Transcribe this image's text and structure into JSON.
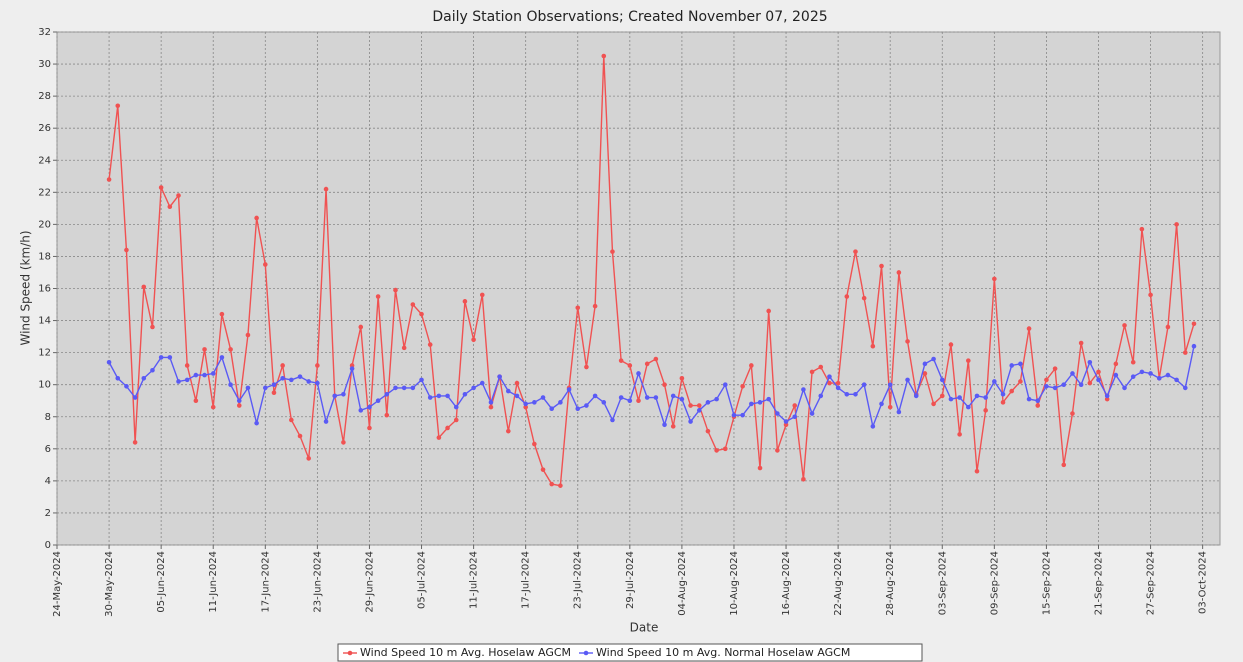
{
  "chart_data": {
    "type": "line",
    "title": "Daily Station Observations; Created November 07, 2025",
    "xlabel": "Date",
    "ylabel": "Wind Speed (km/h)",
    "grid": true,
    "legend": "bottom",
    "x": [
      "2024-05-30",
      "2024-05-31",
      "2024-06-01",
      "2024-06-02",
      "2024-06-03",
      "2024-06-04",
      "2024-06-05",
      "2024-06-06",
      "2024-06-07",
      "2024-06-08",
      "2024-06-09",
      "2024-06-10",
      "2024-06-11",
      "2024-06-12",
      "2024-06-13",
      "2024-06-14",
      "2024-06-15",
      "2024-06-16",
      "2024-06-17",
      "2024-06-18",
      "2024-06-19",
      "2024-06-20",
      "2024-06-21",
      "2024-06-22",
      "2024-06-23",
      "2024-06-24",
      "2024-06-25",
      "2024-06-26",
      "2024-06-27",
      "2024-06-28",
      "2024-06-29",
      "2024-06-30",
      "2024-07-01",
      "2024-07-02",
      "2024-07-03",
      "2024-07-04",
      "2024-07-05",
      "2024-07-06",
      "2024-07-07",
      "2024-07-08",
      "2024-07-09",
      "2024-07-10",
      "2024-07-11",
      "2024-07-12",
      "2024-07-13",
      "2024-07-14",
      "2024-07-15",
      "2024-07-16",
      "2024-07-17",
      "2024-07-18",
      "2024-07-19",
      "2024-07-20",
      "2024-07-21",
      "2024-07-22",
      "2024-07-23",
      "2024-07-24",
      "2024-07-25",
      "2024-07-26",
      "2024-07-27",
      "2024-07-28",
      "2024-07-29",
      "2024-07-30",
      "2024-07-31",
      "2024-08-01",
      "2024-08-02",
      "2024-08-03",
      "2024-08-04",
      "2024-08-05",
      "2024-08-06",
      "2024-08-07",
      "2024-08-08",
      "2024-08-09",
      "2024-08-10",
      "2024-08-11",
      "2024-08-12",
      "2024-08-13",
      "2024-08-14",
      "2024-08-15",
      "2024-08-16",
      "2024-08-17",
      "2024-08-18",
      "2024-08-19",
      "2024-08-20",
      "2024-08-21",
      "2024-08-22",
      "2024-08-23",
      "2024-08-24",
      "2024-08-25",
      "2024-08-26",
      "2024-08-27",
      "2024-08-28",
      "2024-08-29",
      "2024-08-30",
      "2024-08-31",
      "2024-09-01",
      "2024-09-02",
      "2024-09-03",
      "2024-09-04",
      "2024-09-05",
      "2024-09-06",
      "2024-09-07",
      "2024-09-08",
      "2024-09-09",
      "2024-09-10",
      "2024-09-11",
      "2024-09-12",
      "2024-09-13",
      "2024-09-14",
      "2024-09-15",
      "2024-09-16",
      "2024-09-17",
      "2024-09-18",
      "2024-09-19",
      "2024-09-20",
      "2024-09-21",
      "2024-09-22",
      "2024-09-23",
      "2024-09-24",
      "2024-09-25",
      "2024-09-26",
      "2024-09-27",
      "2024-09-28",
      "2024-09-29",
      "2024-09-30",
      "2024-10-01",
      "2024-10-02"
    ],
    "series": [
      {
        "name": "Wind Speed 10 m Avg. Hoselaw AGCM",
        "color": "#f05252",
        "values": [
          22.8,
          27.4,
          18.4,
          6.4,
          16.1,
          13.6,
          22.3,
          21.1,
          21.8,
          11.2,
          9.0,
          12.2,
          8.6,
          14.4,
          12.2,
          8.7,
          13.1,
          20.4,
          17.5,
          9.5,
          11.2,
          7.8,
          6.8,
          5.4,
          11.2,
          22.2,
          9.3,
          6.4,
          11.2,
          13.6,
          7.3,
          15.5,
          8.1,
          15.9,
          12.3,
          15.0,
          14.4,
          12.5,
          6.7,
          7.3,
          7.8,
          15.2,
          12.8,
          15.6,
          8.6,
          10.5,
          7.1,
          10.1,
          8.6,
          6.3,
          4.7,
          3.8,
          3.7,
          9.8,
          14.8,
          11.1,
          14.9,
          30.5,
          18.3,
          11.5,
          11.2,
          9.0,
          11.3,
          11.6,
          10.0,
          7.4,
          10.4,
          8.7,
          8.7,
          7.1,
          5.9,
          6.0,
          8.0,
          9.9,
          11.2,
          4.8,
          14.6,
          5.9,
          7.5,
          8.7,
          4.1,
          10.8,
          11.1,
          10.1,
          10.1,
          15.5,
          18.3,
          15.4,
          12.4,
          17.4,
          8.6,
          17.0,
          12.7,
          9.4,
          10.7,
          8.8,
          9.3,
          12.5,
          6.9,
          11.5,
          4.6,
          8.4,
          16.6,
          8.9,
          9.6,
          10.2,
          13.5,
          8.7,
          10.3,
          11.0,
          5.0,
          8.2,
          12.6,
          10.1,
          10.8,
          9.1,
          11.3,
          13.7,
          11.4,
          19.7,
          15.6,
          10.4,
          13.6,
          20.0,
          12.0,
          13.8
        ]
      },
      {
        "name": "Wind Speed 10 m Avg. Normal Hoselaw AGCM",
        "color": "#5a5af5",
        "values": [
          11.4,
          10.4,
          9.9,
          9.2,
          10.4,
          10.9,
          11.7,
          11.7,
          10.2,
          10.3,
          10.6,
          10.6,
          10.7,
          11.7,
          10.0,
          9.0,
          9.8,
          7.6,
          9.8,
          10.0,
          10.4,
          10.3,
          10.5,
          10.2,
          10.1,
          7.7,
          9.3,
          9.4,
          11.0,
          8.4,
          8.6,
          9.0,
          9.4,
          9.8,
          9.8,
          9.8,
          10.3,
          9.2,
          9.3,
          9.3,
          8.6,
          9.4,
          9.8,
          10.1,
          8.9,
          10.5,
          9.6,
          9.3,
          8.8,
          8.9,
          9.2,
          8.5,
          8.9,
          9.7,
          8.5,
          8.7,
          9.3,
          8.9,
          7.8,
          9.2,
          9.0,
          10.7,
          9.2,
          9.2,
          7.5,
          9.3,
          9.1,
          7.7,
          8.4,
          8.9,
          9.1,
          10.0,
          8.1,
          8.1,
          8.8,
          8.9,
          9.1,
          8.2,
          7.7,
          8.0,
          9.7,
          8.2,
          9.3,
          10.5,
          9.8,
          9.4,
          9.4,
          10.0,
          7.4,
          8.8,
          10.0,
          8.3,
          10.3,
          9.3,
          11.3,
          11.6,
          10.3,
          9.1,
          9.2,
          8.6,
          9.3,
          9.2,
          10.2,
          9.4,
          11.2,
          11.3,
          9.1,
          9.0,
          9.9,
          9.8,
          10.0,
          10.7,
          10.0,
          11.4,
          10.3,
          9.3,
          10.6,
          9.8,
          10.5,
          10.8,
          10.7,
          10.4,
          10.6,
          10.3,
          9.8,
          12.4
        ]
      }
    ],
    "xlim": [
      "2024-05-24",
      "2024-10-05"
    ],
    "xticks": [
      {
        "value": "2024-05-24",
        "label": "24-May-2024"
      },
      {
        "value": "2024-05-30",
        "label": "30-May-2024"
      },
      {
        "value": "2024-06-05",
        "label": "05-Jun-2024"
      },
      {
        "value": "2024-06-11",
        "label": "11-Jun-2024"
      },
      {
        "value": "2024-06-17",
        "label": "17-Jun-2024"
      },
      {
        "value": "2024-06-23",
        "label": "23-Jun-2024"
      },
      {
        "value": "2024-06-29",
        "label": "29-Jun-2024"
      },
      {
        "value": "2024-07-05",
        "label": "05-Jul-2024"
      },
      {
        "value": "2024-07-11",
        "label": "11-Jul-2024"
      },
      {
        "value": "2024-07-17",
        "label": "17-Jul-2024"
      },
      {
        "value": "2024-07-23",
        "label": "23-Jul-2024"
      },
      {
        "value": "2024-07-29",
        "label": "29-Jul-2024"
      },
      {
        "value": "2024-08-04",
        "label": "04-Aug-2024"
      },
      {
        "value": "2024-08-10",
        "label": "10-Aug-2024"
      },
      {
        "value": "2024-08-16",
        "label": "16-Aug-2024"
      },
      {
        "value": "2024-08-22",
        "label": "22-Aug-2024"
      },
      {
        "value": "2024-08-28",
        "label": "28-Aug-2024"
      },
      {
        "value": "2024-09-03",
        "label": "03-Sep-2024"
      },
      {
        "value": "2024-09-09",
        "label": "09-Sep-2024"
      },
      {
        "value": "2024-09-15",
        "label": "15-Sep-2024"
      },
      {
        "value": "2024-09-21",
        "label": "21-Sep-2024"
      },
      {
        "value": "2024-09-27",
        "label": "27-Sep-2024"
      },
      {
        "value": "2024-10-03",
        "label": "03-Oct-2024"
      }
    ],
    "ylim": [
      0,
      32
    ],
    "yticks": [
      0,
      2,
      4,
      6,
      8,
      10,
      12,
      14,
      16,
      18,
      20,
      22,
      24,
      26,
      28,
      30,
      32
    ]
  }
}
